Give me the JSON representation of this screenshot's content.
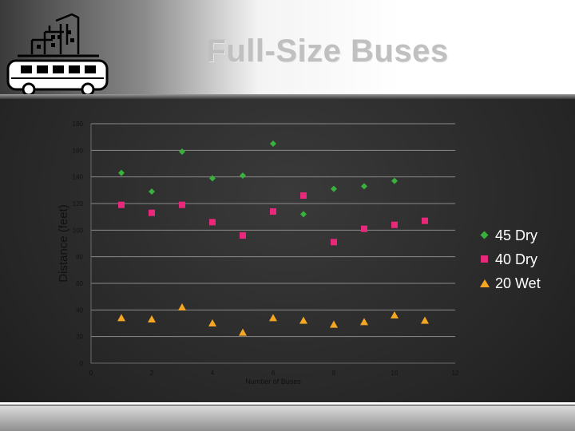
{
  "slide": {
    "title": "Full-Size Buses",
    "logo_icon": "bus-icon"
  },
  "chart_data": {
    "type": "scatter",
    "title": "",
    "xlabel": "Number of Buses",
    "ylabel": "Distance (feet)",
    "xlim": [
      0,
      12
    ],
    "ylim": [
      0,
      180
    ],
    "x_ticks": [
      "0",
      "2",
      "4",
      "6",
      "8",
      "10",
      "12"
    ],
    "y_ticks": [
      "0",
      "20",
      "40",
      "60",
      "80",
      "100",
      "120",
      "140",
      "160",
      "180"
    ],
    "grid": true,
    "legend_position": "right",
    "series": [
      {
        "name": "45 Dry",
        "marker": "diamond",
        "color": "#38b23a",
        "x": [
          1,
          2,
          3,
          4,
          5,
          6,
          7,
          8,
          9,
          10
        ],
        "y": [
          143,
          129,
          159,
          139,
          141,
          165,
          112,
          131,
          133,
          137
        ]
      },
      {
        "name": "40 Dry",
        "marker": "square",
        "color": "#e8287a",
        "x": [
          1,
          2,
          3,
          4,
          5,
          6,
          7,
          8,
          9,
          10,
          11
        ],
        "y": [
          119,
          113,
          119,
          106,
          96,
          114,
          126,
          91,
          101,
          104,
          107
        ]
      },
      {
        "name": "20 Wet",
        "marker": "triangle",
        "color": "#f5a623",
        "x": [
          1,
          2,
          3,
          4,
          5,
          6,
          7,
          8,
          9,
          10,
          11
        ],
        "y": [
          34,
          33,
          42,
          30,
          23,
          34,
          32,
          29,
          31,
          36,
          32
        ]
      }
    ]
  }
}
